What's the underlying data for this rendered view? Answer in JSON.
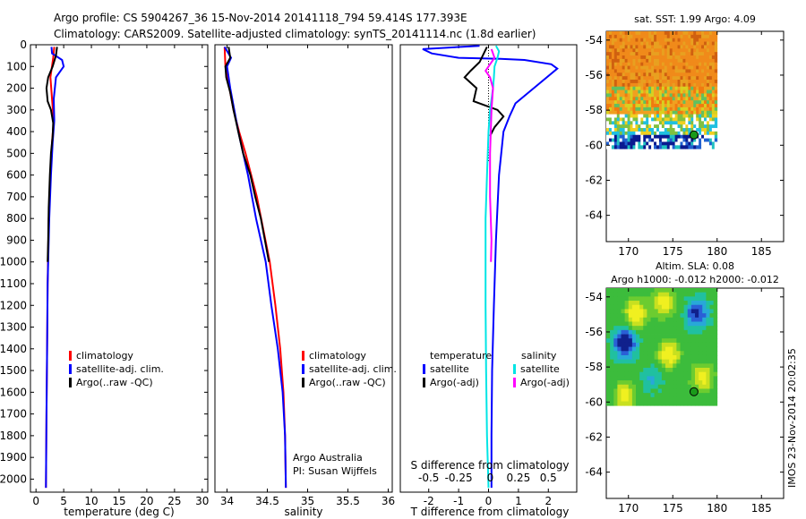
{
  "header": {
    "line1": "Argo profile: CS 5904267_36 15-Nov-2014 20141118_794 59.414S 177.393E",
    "line2": "Climatology: CARS2009. Satellite-adjusted climatology: synTS_20141114.nc (1.8d earlier)"
  },
  "colors": {
    "climatology": "#ff0000",
    "satellite": "#0000ff",
    "argo": "#000000",
    "satellite_s": "#00e5e5",
    "argo_s": "#ff00ff"
  },
  "chart_data": [
    {
      "type": "line",
      "id": "temperature-panel",
      "xlabel": "temperature (deg C)",
      "ylabel": "",
      "xlim": [
        -1,
        31
      ],
      "ylim": [
        2060,
        0
      ],
      "xticks": [
        0,
        5,
        10,
        15,
        20,
        25,
        30
      ],
      "yticks": [
        0,
        100,
        200,
        300,
        400,
        500,
        600,
        700,
        800,
        900,
        1000,
        1100,
        1200,
        1300,
        1400,
        1500,
        1600,
        1700,
        1800,
        1900,
        2000
      ],
      "legend": [
        "climatology",
        "satellite-adj. clim.",
        "Argo(..raw -QC)"
      ],
      "series": [
        {
          "name": "climatology",
          "color": "#ff0000",
          "points": [
            [
              3.3,
              10
            ],
            [
              3.1,
              60
            ],
            [
              2.6,
              150
            ],
            [
              2.9,
              250
            ],
            [
              3.2,
              350
            ],
            [
              2.9,
              450
            ],
            [
              2.6,
              600
            ],
            [
              2.3,
              800
            ],
            [
              2.1,
              1100
            ],
            [
              2.0,
              1400
            ],
            [
              1.9,
              1700
            ],
            [
              1.8,
              2040
            ]
          ]
        },
        {
          "name": "satellite-adj. clim.",
          "color": "#0000ff",
          "points": [
            [
              2.8,
              10
            ],
            [
              2.9,
              40
            ],
            [
              4.7,
              70
            ],
            [
              5.0,
              100
            ],
            [
              3.6,
              150
            ],
            [
              3.2,
              250
            ],
            [
              3.3,
              350
            ],
            [
              3.0,
              450
            ],
            [
              2.7,
              600
            ],
            [
              2.4,
              800
            ],
            [
              2.1,
              1100
            ],
            [
              2.0,
              1400
            ],
            [
              1.9,
              1700
            ],
            [
              1.8,
              2040
            ]
          ]
        },
        {
          "name": "Argo(..raw -QC)",
          "color": "#000000",
          "points": [
            [
              3.8,
              10
            ],
            [
              3.6,
              50
            ],
            [
              3.0,
              100
            ],
            [
              2.2,
              150
            ],
            [
              1.9,
              200
            ],
            [
              2.1,
              260
            ],
            [
              2.7,
              300
            ],
            [
              3.1,
              360
            ],
            [
              3.0,
              420
            ],
            [
              2.7,
              500
            ],
            [
              2.5,
              600
            ],
            [
              2.3,
              750
            ],
            [
              2.2,
              900
            ],
            [
              2.1,
              1000
            ]
          ]
        }
      ]
    },
    {
      "type": "line",
      "id": "salinity-panel",
      "xlabel": "salinity",
      "xlim": [
        33.85,
        36.05
      ],
      "ylim": [
        2060,
        0
      ],
      "xticks": [
        34,
        34.5,
        35,
        35.5,
        36
      ],
      "legend": [
        "climatology",
        "satellite-adj. clim.",
        "Argo(..raw -QC)"
      ],
      "annotations": [
        "Argo Australia",
        "PI: Susan Wijffels"
      ],
      "series": [
        {
          "name": "climatology",
          "color": "#ff0000",
          "points": [
            [
              33.97,
              10
            ],
            [
              33.98,
              100
            ],
            [
              34.03,
              200
            ],
            [
              34.08,
              300
            ],
            [
              34.15,
              400
            ],
            [
              34.23,
              500
            ],
            [
              34.3,
              600
            ],
            [
              34.37,
              700
            ],
            [
              34.45,
              850
            ],
            [
              34.53,
              1000
            ],
            [
              34.6,
              1200
            ],
            [
              34.66,
              1400
            ],
            [
              34.7,
              1600
            ],
            [
              34.72,
              1800
            ],
            [
              34.73,
              2040
            ]
          ]
        },
        {
          "name": "satellite-adj. clim.",
          "color": "#0000ff",
          "points": [
            [
              33.97,
              10
            ],
            [
              34.05,
              60
            ],
            [
              34.0,
              100
            ],
            [
              34.04,
              200
            ],
            [
              34.09,
              300
            ],
            [
              34.14,
              400
            ],
            [
              34.2,
              500
            ],
            [
              34.26,
              600
            ],
            [
              34.31,
              700
            ],
            [
              34.36,
              800
            ],
            [
              34.42,
              900
            ],
            [
              34.48,
              1000
            ],
            [
              34.55,
              1200
            ],
            [
              34.63,
              1400
            ],
            [
              34.69,
              1600
            ],
            [
              34.72,
              1800
            ],
            [
              34.73,
              2040
            ]
          ]
        },
        {
          "name": "Argo(..raw -QC)",
          "color": "#000000",
          "points": [
            [
              34.02,
              10
            ],
            [
              34.04,
              60
            ],
            [
              33.98,
              100
            ],
            [
              33.99,
              150
            ],
            [
              34.04,
              220
            ],
            [
              34.08,
              300
            ],
            [
              34.14,
              400
            ],
            [
              34.2,
              500
            ],
            [
              34.29,
              600
            ],
            [
              34.35,
              700
            ],
            [
              34.42,
              800
            ],
            [
              34.47,
              900
            ],
            [
              34.52,
              1000
            ]
          ]
        }
      ]
    },
    {
      "type": "line",
      "id": "difference-panel",
      "xlabel": "T difference from climatology",
      "xlabel_top": "S difference from climatology",
      "xlim": [
        -2.95,
        2.95
      ],
      "ylim": [
        2060,
        0
      ],
      "xticks": [
        -2,
        -1,
        0,
        1,
        2
      ],
      "xticks_s": [
        "-0.5",
        "-0.25",
        "0",
        "0.25",
        "0.5"
      ],
      "legend": {
        "temperature_title": "temperature",
        "salinity_title": "salinity",
        "items": [
          "satellite",
          "Argo(-adj)",
          "satellite",
          "Argo(-adj)"
        ]
      },
      "series": [
        {
          "name": "satellite (temperature)",
          "color": "#0000ff",
          "points": [
            [
              -0.3,
              5
            ],
            [
              -2.2,
              20
            ],
            [
              -1.9,
              40
            ],
            [
              -1.0,
              60
            ],
            [
              0.4,
              65
            ],
            [
              1.2,
              70
            ],
            [
              2.1,
              90
            ],
            [
              2.3,
              110
            ],
            [
              1.6,
              190
            ],
            [
              0.9,
              270
            ],
            [
              0.7,
              330
            ],
            [
              0.5,
              400
            ],
            [
              0.35,
              600
            ],
            [
              0.25,
              900
            ],
            [
              0.18,
              1200
            ],
            [
              0.12,
              1500
            ],
            [
              0.1,
              1800
            ],
            [
              0.1,
              2040
            ]
          ]
        },
        {
          "name": "Argo(-adj) (temperature)",
          "color": "#000000",
          "points": [
            [
              -0.05,
              10
            ],
            [
              -0.3,
              80
            ],
            [
              -0.6,
              120
            ],
            [
              -0.8,
              150
            ],
            [
              -0.4,
              200
            ],
            [
              -0.5,
              260
            ],
            [
              0.3,
              300
            ],
            [
              0.5,
              330
            ],
            [
              0.2,
              380
            ],
            [
              0.05,
              420
            ]
          ]
        },
        {
          "name": "satellite (salinity)",
          "color": "#00e5e5",
          "points": [
            [
              0.25,
              5
            ],
            [
              0.35,
              30
            ],
            [
              0.3,
              60
            ],
            [
              0.2,
              100
            ],
            [
              0.18,
              150
            ],
            [
              0.15,
              200
            ],
            [
              0.05,
              300
            ],
            [
              0.0,
              400
            ],
            [
              -0.05,
              600
            ],
            [
              -0.1,
              800
            ],
            [
              -0.1,
              1000
            ],
            [
              -0.1,
              1200
            ],
            [
              -0.08,
              1500
            ],
            [
              -0.05,
              1800
            ],
            [
              0.0,
              2040
            ]
          ]
        },
        {
          "name": "Argo(-adj) (salinity)",
          "color": "#ff00ff",
          "points": [
            [
              0.1,
              20
            ],
            [
              0.2,
              60
            ],
            [
              -0.1,
              120
            ],
            [
              0.05,
              150
            ],
            [
              0.15,
              200
            ],
            [
              0.1,
              300
            ],
            [
              0.05,
              500
            ],
            [
              0.05,
              700
            ],
            [
              0.1,
              900
            ],
            [
              0.08,
              1000
            ]
          ]
        }
      ]
    },
    {
      "type": "heatmap",
      "id": "sst-map",
      "title": "sat. SST: 1.99 Argo: 4.09",
      "xlim": [
        167.5,
        187.5
      ],
      "ylim": [
        -65.5,
        -53.5
      ],
      "xticks": [
        170,
        175,
        180,
        185
      ],
      "yticks": [
        -54,
        -56,
        -58,
        -60,
        -62,
        -64
      ],
      "argo_position": [
        177.39,
        -59.41
      ]
    },
    {
      "type": "heatmap",
      "id": "sla-map",
      "title": "Altim. SLA: 0.08",
      "subtitle": "Argo h1000: -0.012 h2000: -0.012",
      "xlim": [
        167.5,
        187.5
      ],
      "ylim": [
        -65.5,
        -53.5
      ],
      "xticks": [
        170,
        175,
        180,
        185
      ],
      "yticks": [
        -54,
        -56,
        -58,
        -60,
        -62,
        -64
      ],
      "argo_position": [
        177.39,
        -59.41
      ]
    }
  ],
  "footer": {
    "stamp": "IMOS 23-Nov-2014 20:02:35"
  }
}
